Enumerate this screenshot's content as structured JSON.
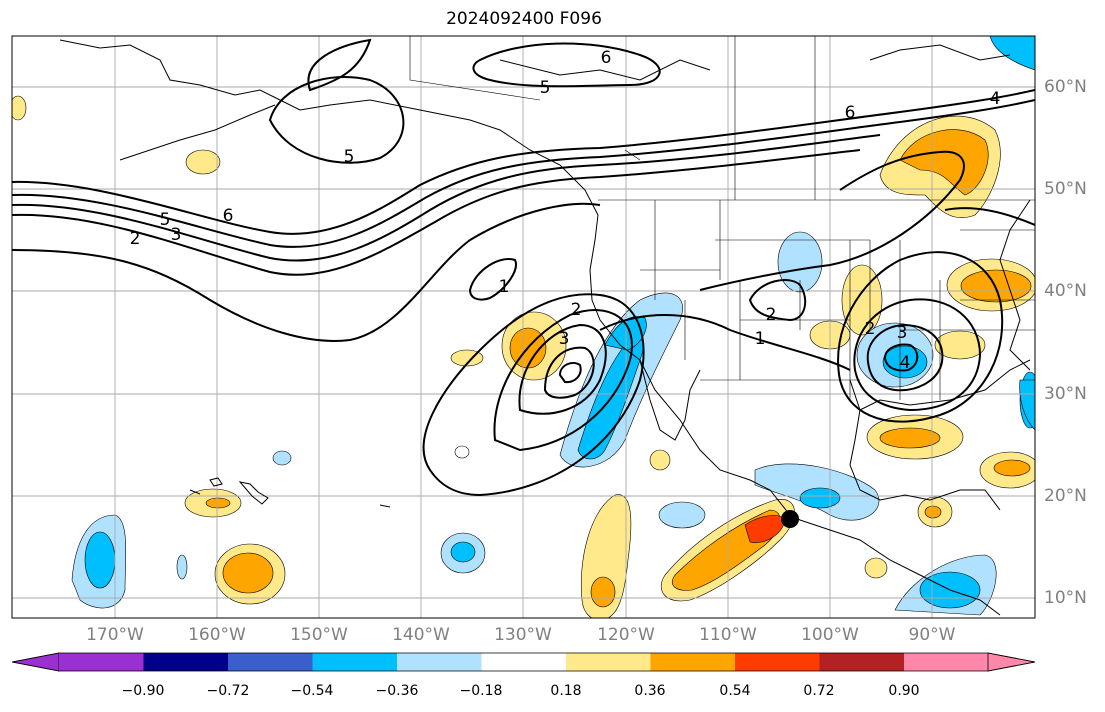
{
  "title": "2024092400 F096",
  "map": {
    "lat_labels": [
      "60°N",
      "50°N",
      "40°N",
      "30°N",
      "20°N",
      "10°N"
    ],
    "lon_labels": [
      "170°W",
      "160°W",
      "150°W",
      "140°W",
      "130°W",
      "120°W",
      "110°W",
      "100°W",
      "90°W"
    ],
    "contour_labels": [
      "6",
      "5",
      "4",
      "6",
      "5",
      "6",
      "5",
      "2",
      "3",
      "1",
      "2",
      "3",
      "1",
      "2",
      "3",
      "4",
      "2"
    ],
    "marker_color": "#000000"
  },
  "colorbar": {
    "ticks": [
      "−0.90",
      "−0.72",
      "−0.54",
      "−0.36",
      "−0.18",
      "0.18",
      "0.36",
      "0.54",
      "0.72",
      "0.90"
    ],
    "colors": [
      "#9b30d0",
      "#00008b",
      "#3a5fcd",
      "#00bfff",
      "#b0e2ff",
      "#ffffff",
      "#ffe98a",
      "#ffa500",
      "#ff3c00",
      "#b22222",
      "#ff88aa"
    ]
  }
}
